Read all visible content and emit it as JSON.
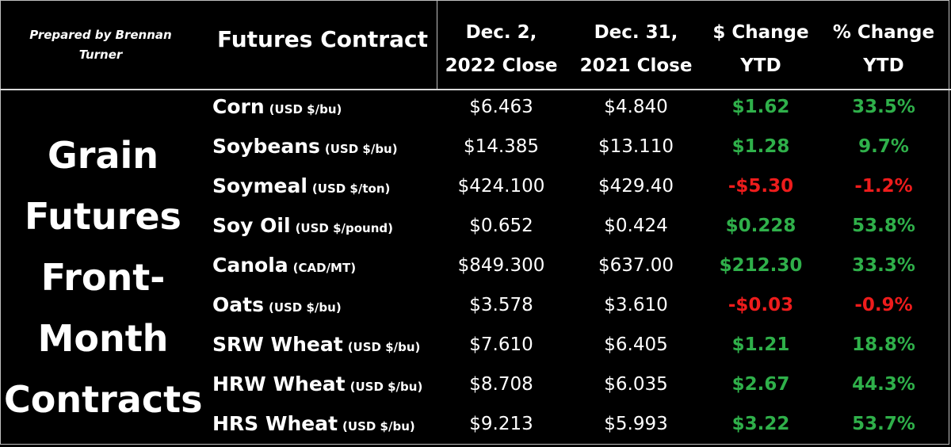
{
  "credit": "Prepared by Brennan Turner",
  "header": {
    "contract": "Futures Contract",
    "col1": "Dec. 2,\n2022 Close",
    "col2": "Dec. 31,\n2021 Close",
    "col3": "$ Change\nYTD",
    "col4": "% Change\nYTD"
  },
  "section_label": "Grain\nFutures\nFront-\nMonth\nContracts",
  "colors": {
    "positive": "#2fb04a",
    "negative": "#ee1c1c",
    "text": "#ffffff",
    "background": "#000000"
  },
  "chart_data": {
    "type": "table",
    "columns": [
      "Futures Contract",
      "Dec. 2, 2022 Close",
      "Dec. 31, 2021 Close",
      "$ Change YTD",
      "% Change YTD"
    ],
    "rows": [
      {
        "name": "Corn",
        "unit": "(USD $/bu)",
        "close_2022": "$6.463",
        "close_2021": "$4.840",
        "change": "$1.62",
        "pct": "33.5%",
        "sign": "pos"
      },
      {
        "name": "Soybeans",
        "unit": "(USD $/bu)",
        "close_2022": "$14.385",
        "close_2021": "$13.110",
        "change": "$1.28",
        "pct": "9.7%",
        "sign": "pos"
      },
      {
        "name": "Soymeal",
        "unit": "(USD $/ton)",
        "close_2022": "$424.100",
        "close_2021": "$429.40",
        "change": "-$5.30",
        "pct": "-1.2%",
        "sign": "neg"
      },
      {
        "name": "Soy Oil",
        "unit": "(USD $/pound)",
        "close_2022": "$0.652",
        "close_2021": "$0.424",
        "change": "$0.228",
        "pct": "53.8%",
        "sign": "pos"
      },
      {
        "name": "Canola",
        "unit": "(CAD/MT)",
        "close_2022": "$849.300",
        "close_2021": "$637.00",
        "change": "$212.30",
        "pct": "33.3%",
        "sign": "pos"
      },
      {
        "name": "Oats",
        "unit": "(USD $/bu)",
        "close_2022": "$3.578",
        "close_2021": "$3.610",
        "change": "-$0.03",
        "pct": "-0.9%",
        "sign": "neg"
      },
      {
        "name": "SRW Wheat",
        "unit": "(USD $/bu)",
        "close_2022": "$7.610",
        "close_2021": "$6.405",
        "change": "$1.21",
        "pct": "18.8%",
        "sign": "pos"
      },
      {
        "name": "HRW Wheat",
        "unit": "(USD $/bu)",
        "close_2022": "$8.708",
        "close_2021": "$6.035",
        "change": "$2.67",
        "pct": "44.3%",
        "sign": "pos"
      },
      {
        "name": "HRS Wheat",
        "unit": "(USD $/bu)",
        "close_2022": "$9.213",
        "close_2021": "$5.993",
        "change": "$3.22",
        "pct": "53.7%",
        "sign": "pos"
      }
    ]
  }
}
